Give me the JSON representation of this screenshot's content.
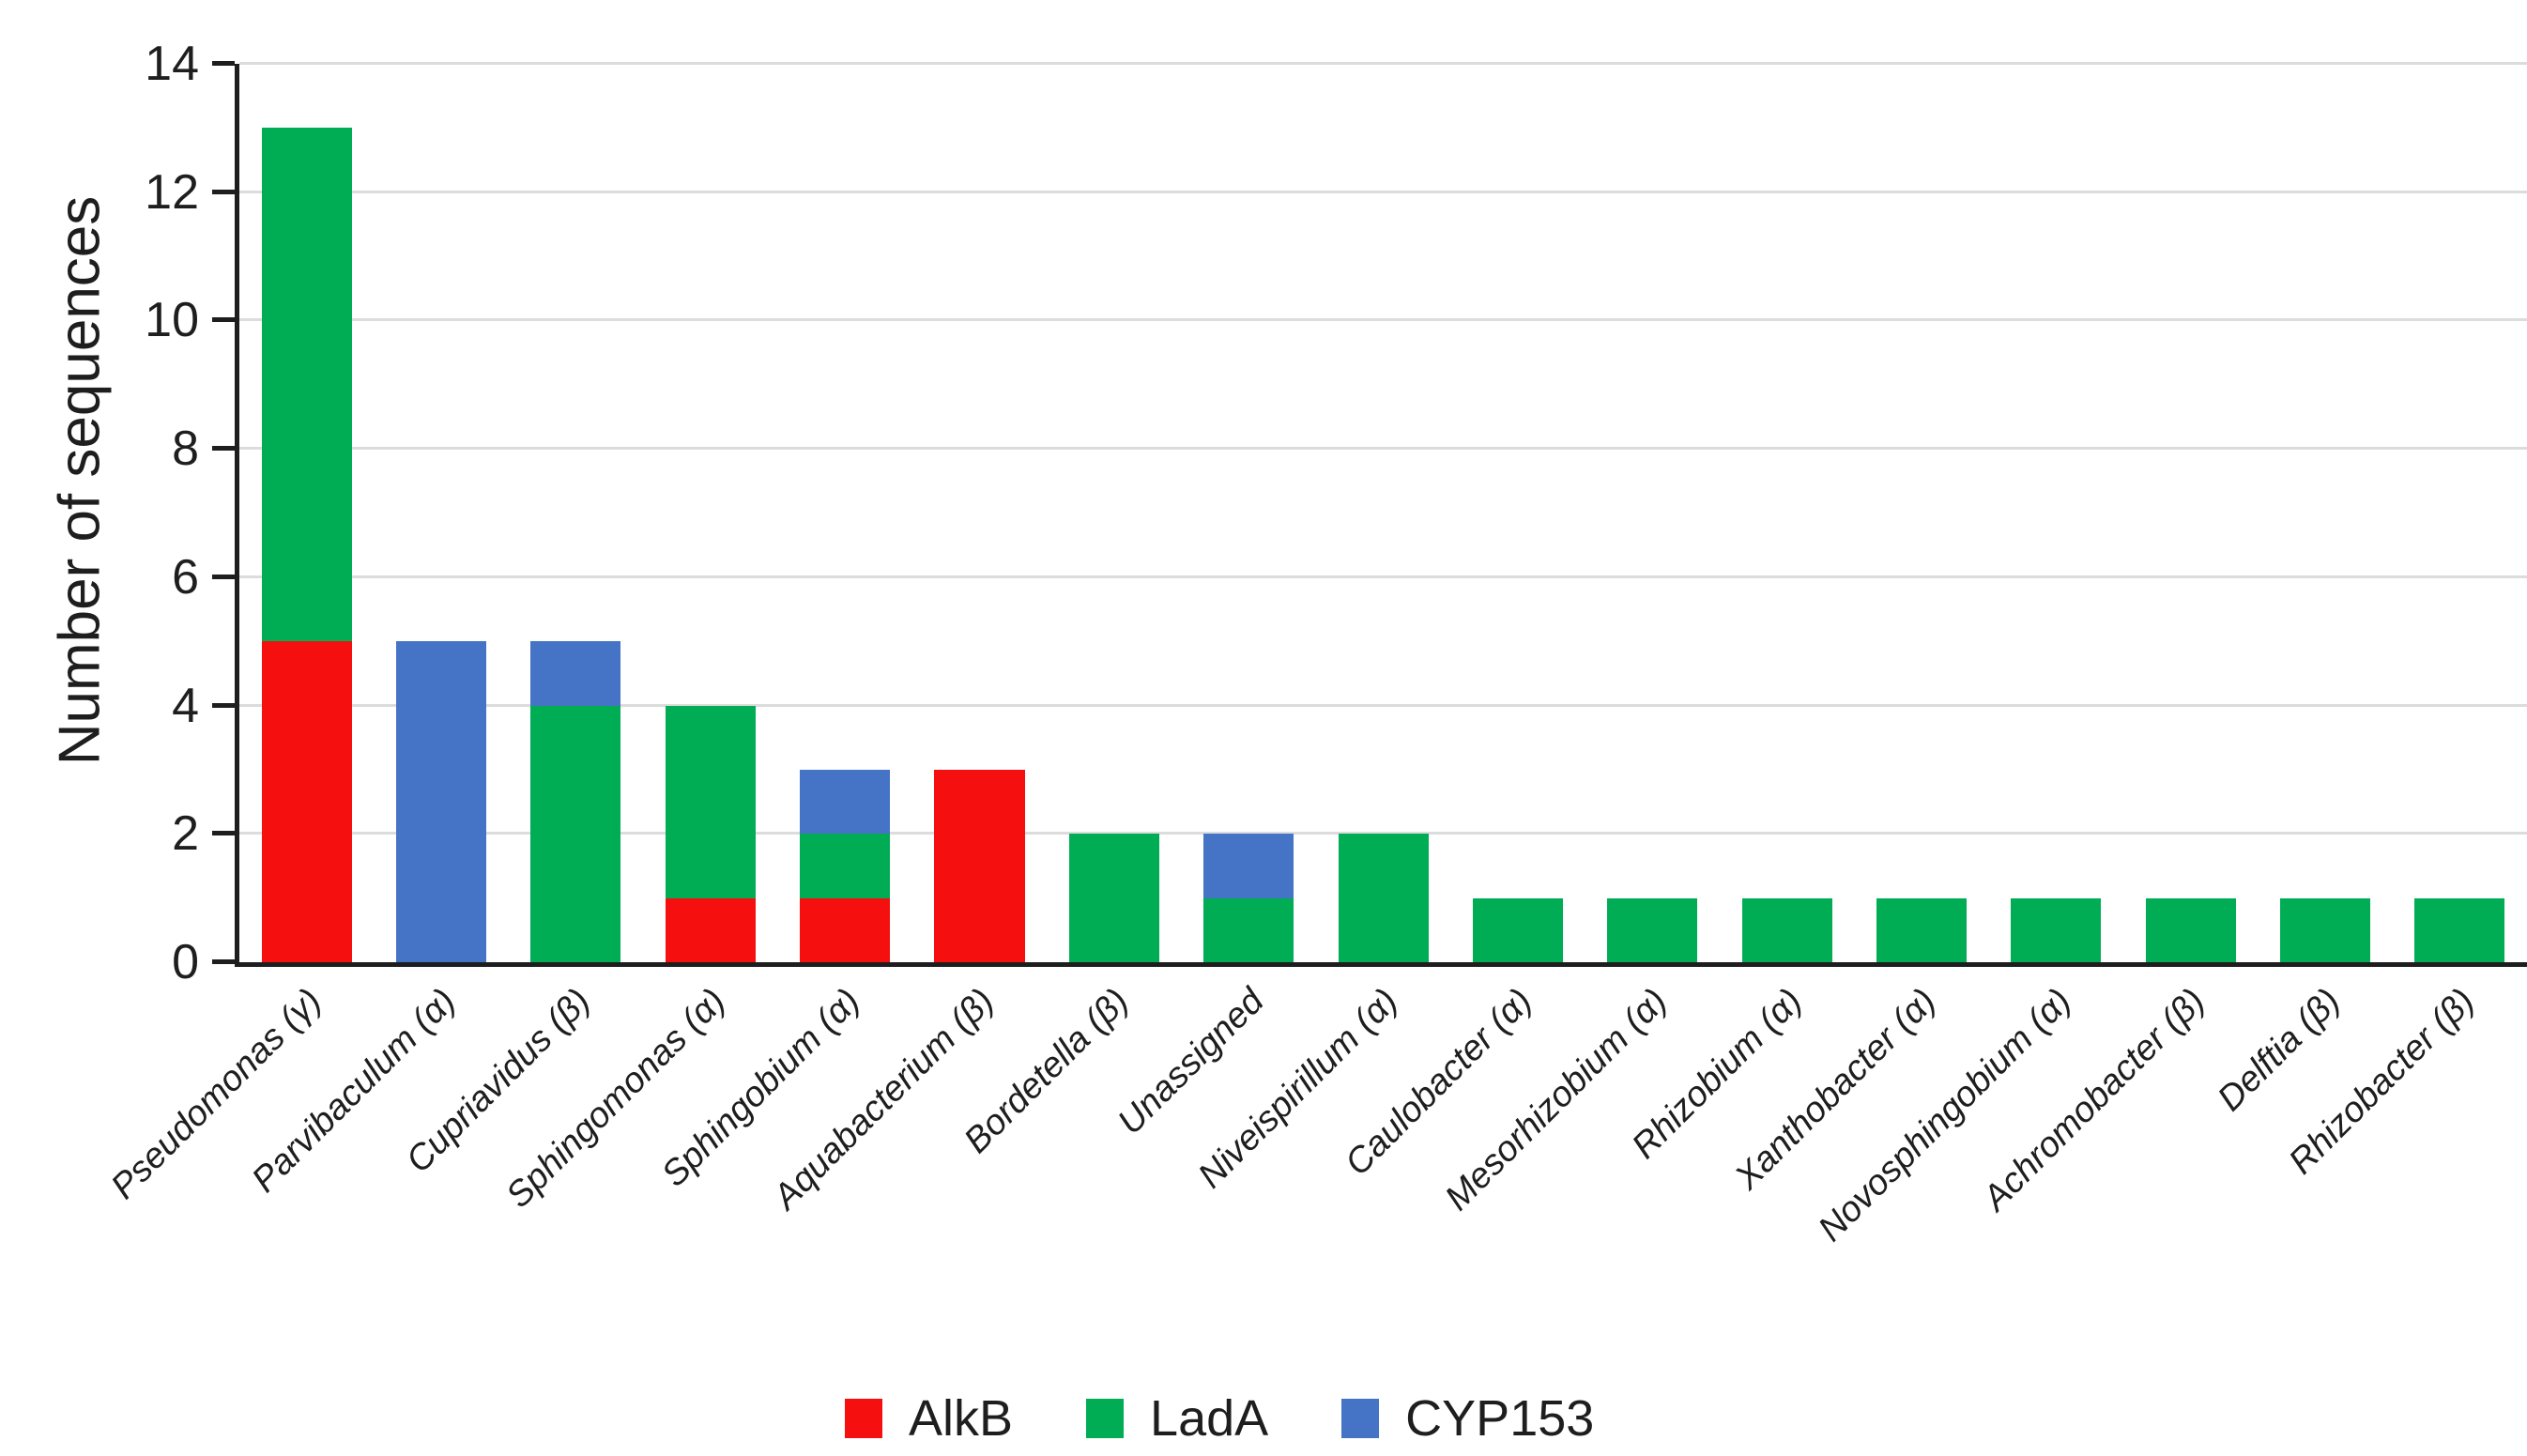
{
  "chart_data": {
    "type": "bar",
    "stacked": true,
    "title": "",
    "xlabel": "",
    "ylabel": "Number of sequences",
    "ylim": [
      0,
      14
    ],
    "yticks": [
      0,
      2,
      4,
      6,
      8,
      10,
      12,
      14
    ],
    "grid": "horizontal",
    "legend_position": "bottom",
    "categories": [
      "Pseudomonas (γ)",
      "Parvibaculum (α)",
      "Cupriavidus (β)",
      "Sphingomonas (α)",
      "Sphingobium (α)",
      "Aquabacterium (β)",
      "Bordetella (β)",
      "Unassigned",
      "Niveispirillum (α)",
      "Caulobacter (α)",
      "Mesorhizobium (α)",
      "Rhizobium (α)",
      "Xanthobacter (α)",
      "Novosphingobium (α)",
      "Achromobacter (β)",
      "Delftia (β)",
      "Rhizobacter (β)"
    ],
    "series": [
      {
        "name": "AlkB",
        "color": "#f5100f",
        "values": [
          5,
          0,
          0,
          1,
          1,
          3,
          0,
          0,
          0,
          0,
          0,
          0,
          0,
          0,
          0,
          0,
          0
        ]
      },
      {
        "name": "LadA",
        "color": "#00ad55",
        "values": [
          8,
          0,
          4,
          3,
          1,
          0,
          2,
          1,
          2,
          1,
          1,
          1,
          1,
          1,
          1,
          1,
          1
        ]
      },
      {
        "name": "CYP153",
        "color": "#4573c5",
        "values": [
          0,
          5,
          1,
          0,
          1,
          0,
          0,
          1,
          0,
          0,
          0,
          0,
          0,
          0,
          0,
          0,
          0
        ]
      }
    ]
  },
  "colors": {
    "axis": "#1e1e1e",
    "grid": "#dcdcdc",
    "background": "#ffffff"
  }
}
